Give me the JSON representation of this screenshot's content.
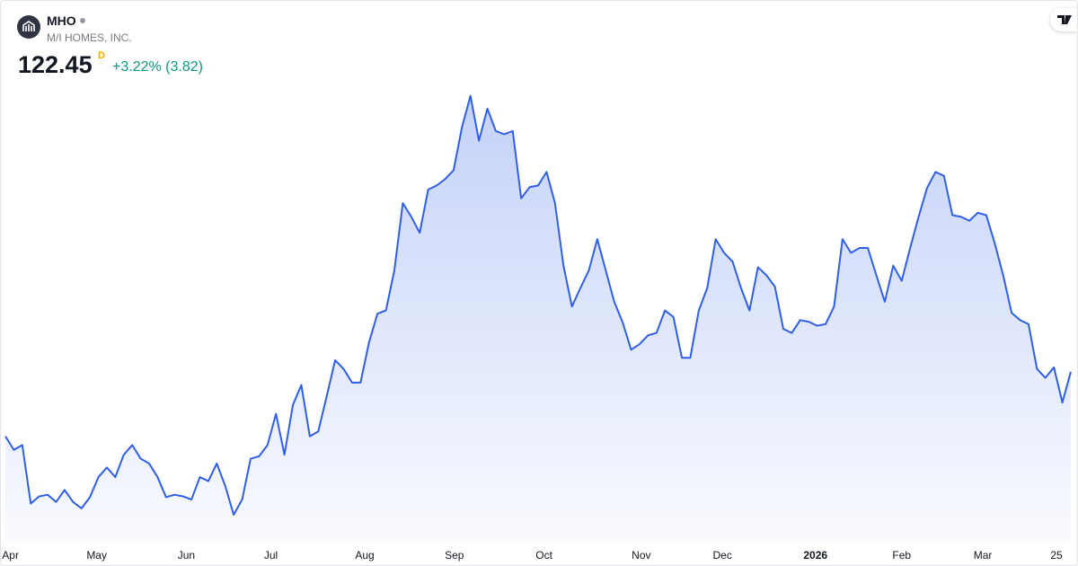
{
  "header": {
    "symbol": "MHO",
    "company": "M/I HOMES, INC.",
    "price": "122.45",
    "price_flag": "D",
    "change": "+3.22% (3.82)"
  },
  "chart_data": {
    "type": "area",
    "series": [
      {
        "name": "MHO",
        "color": "#2f5fe8",
        "values": [
          114.4,
          112.7,
          113.3,
          106.0,
          106.9,
          107.1,
          106.2,
          107.7,
          106.2,
          105.4,
          106.8,
          109.3,
          110.5,
          109.3,
          112.1,
          113.3,
          111.6,
          111.0,
          109.3,
          106.8,
          107.1,
          106.9,
          106.5,
          109.3,
          108.8,
          111.0,
          108.2,
          104.6,
          106.5,
          111.6,
          111.9,
          113.3,
          117.2,
          112.1,
          118.3,
          120.8,
          114.4,
          115.0,
          119.4,
          123.9,
          122.8,
          121.1,
          121.1,
          126.1,
          129.7,
          130.1,
          135.1,
          143.5,
          141.8,
          139.8,
          145.2,
          145.7,
          146.5,
          147.6,
          153.0,
          156.9,
          151.3,
          155.3,
          152.5,
          152.1,
          152.5,
          144.1,
          145.5,
          145.7,
          147.4,
          143.5,
          135.7,
          130.6,
          132.9,
          135.1,
          139.0,
          135.1,
          131.2,
          128.6,
          125.2,
          125.9,
          127.0,
          127.3,
          130.1,
          129.3,
          124.2,
          124.2,
          130.1,
          132.9,
          139.0,
          137.3,
          136.2,
          132.9,
          130.1,
          135.5,
          134.5,
          133.1,
          127.8,
          127.3,
          128.9,
          128.7,
          128.2,
          128.4,
          130.6,
          139.0,
          137.3,
          137.9,
          137.9,
          134.5,
          131.2,
          135.7,
          133.8,
          137.9,
          141.8,
          145.4,
          147.4,
          146.9,
          142.0,
          141.8,
          141.3,
          142.3,
          142.0,
          138.5,
          134.5,
          129.8,
          128.9,
          128.4,
          122.8,
          121.7,
          123.0,
          118.6,
          122.45
        ]
      }
    ],
    "xlim": [
      0,
      126
    ],
    "ylim": [
      100,
      160
    ],
    "xticks": [
      {
        "value": 0.6,
        "label": "Apr"
      },
      {
        "value": 10.8,
        "label": "May"
      },
      {
        "value": 21.4,
        "label": "Jun"
      },
      {
        "value": 31.4,
        "label": "Jul"
      },
      {
        "value": 42.5,
        "label": "Aug"
      },
      {
        "value": 53.1,
        "label": "Sep"
      },
      {
        "value": 63.7,
        "label": "Oct"
      },
      {
        "value": 75.2,
        "label": "Nov"
      },
      {
        "value": 84.8,
        "label": "Dec"
      },
      {
        "value": 95.8,
        "label": "2026"
      },
      {
        "value": 106.0,
        "label": "Feb"
      },
      {
        "value": 115.6,
        "label": "Mar"
      },
      {
        "value": 124.3,
        "label": "25"
      }
    ]
  }
}
